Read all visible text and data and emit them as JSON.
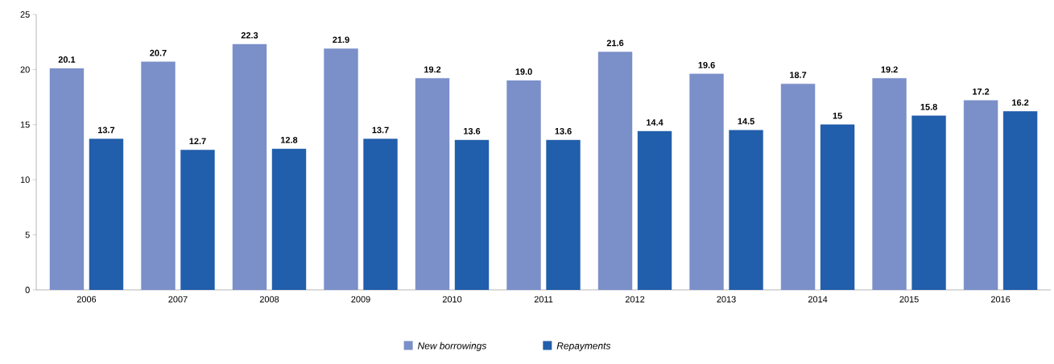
{
  "chart_data": {
    "type": "bar",
    "categories": [
      "2006",
      "2007",
      "2008",
      "2009",
      "2010",
      "2011",
      "2012",
      "2013",
      "2014",
      "2015",
      "2016"
    ],
    "series": [
      {
        "name": "New borrowings",
        "color": "#7b8fc9",
        "values": [
          20.1,
          20.7,
          22.3,
          21.9,
          19.2,
          19.0,
          21.6,
          19.6,
          18.7,
          19.2,
          17.2
        ],
        "value_labels": [
          "20.1",
          "20.7",
          "22.3",
          "21.9",
          "19.2",
          "19.0",
          "21.6",
          "19.6",
          "18.7",
          "19.2",
          "17.2"
        ]
      },
      {
        "name": "Repayments",
        "color": "#215eab",
        "values": [
          13.7,
          12.7,
          12.8,
          13.7,
          13.6,
          13.6,
          14.4,
          14.5,
          15,
          15.8,
          16.2
        ],
        "value_labels": [
          "13.7",
          "12.7",
          "12.8",
          "13.7",
          "13.6",
          "13.6",
          "14.4",
          "14.5",
          "15",
          "15.8",
          "16.2"
        ]
      }
    ],
    "ylim": [
      0,
      25
    ],
    "yticks": [
      0,
      5,
      10,
      15,
      20,
      25
    ],
    "legend": "bottom"
  }
}
